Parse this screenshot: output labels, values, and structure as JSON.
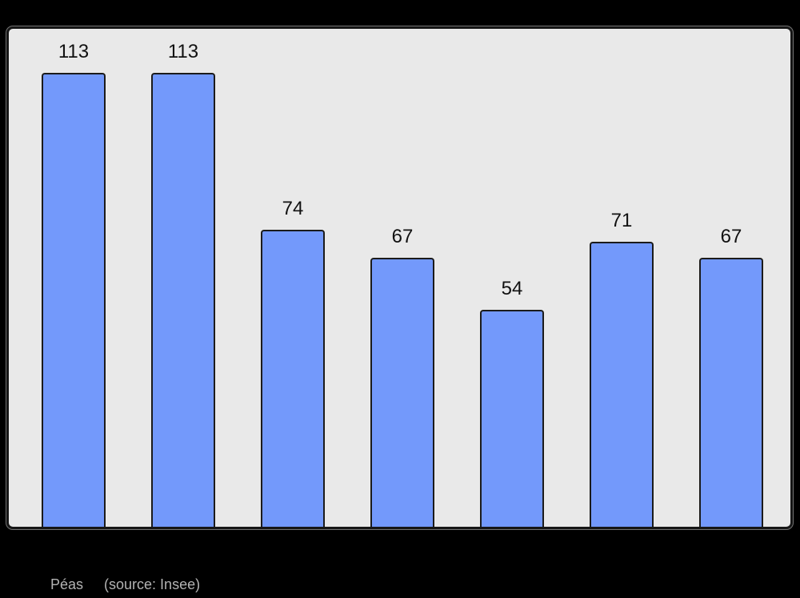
{
  "page": {
    "background": "#000000"
  },
  "chart_data": {
    "type": "bar",
    "values": [
      113,
      113,
      74,
      67,
      54,
      71,
      67
    ],
    "data_labels": [
      "113",
      "113",
      "74",
      "67",
      "54",
      "71",
      "67"
    ],
    "title": "",
    "xlabel": "",
    "ylabel": "",
    "ylim": [
      0,
      124
    ],
    "grid": false,
    "axes_visible": false,
    "legend": null,
    "caption": "Péas (source: Insee)"
  },
  "caption": {
    "title": "Péas",
    "source": "(source: Insee)"
  },
  "colors": {
    "page_bg": "#000000",
    "plot_bg": "#e9e9e9",
    "bar_fill": "#7399fb",
    "bar_border": "#1b1b1b",
    "frame_border": "#161616",
    "value_label": "#111111",
    "caption_text": "#b3b3b3"
  }
}
